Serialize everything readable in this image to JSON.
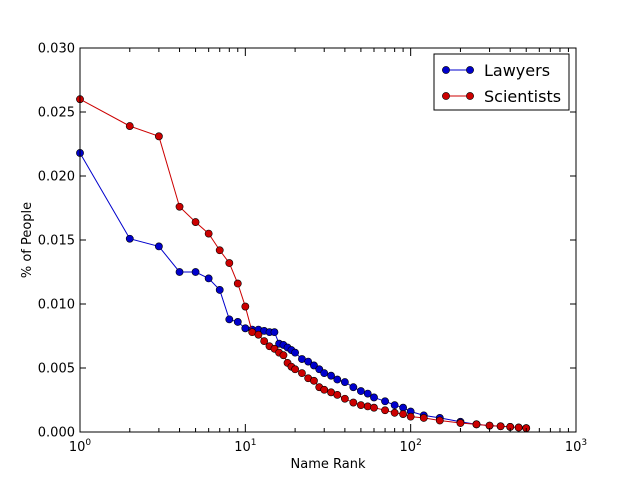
{
  "chart_data": {
    "type": "line",
    "xlabel": "Name Rank",
    "ylabel": "% of People",
    "xscale": "log",
    "xlim": [
      1,
      1000
    ],
    "ylim": [
      0.0,
      0.03
    ],
    "x_ticks": [
      {
        "value": 1,
        "base": "10",
        "exp": "0"
      },
      {
        "value": 10,
        "base": "10",
        "exp": "1"
      },
      {
        "value": 100,
        "base": "10",
        "exp": "2"
      },
      {
        "value": 1000,
        "base": "10",
        "exp": "3"
      }
    ],
    "y_ticks": [
      {
        "value": 0.0,
        "label": "0.000"
      },
      {
        "value": 0.005,
        "label": "0.005"
      },
      {
        "value": 0.01,
        "label": "0.010"
      },
      {
        "value": 0.015,
        "label": "0.015"
      },
      {
        "value": 0.02,
        "label": "0.020"
      },
      {
        "value": 0.025,
        "label": "0.025"
      },
      {
        "value": 0.03,
        "label": "0.030"
      }
    ],
    "legend_position": "top-right",
    "grid": false,
    "series": [
      {
        "name": "Lawyers",
        "color": "#0000cc",
        "x": [
          1,
          2,
          3,
          4,
          5,
          6,
          7,
          8,
          9,
          10,
          11,
          12,
          13,
          14,
          15,
          16,
          17,
          18,
          19,
          20,
          22,
          24,
          26,
          28,
          30,
          33,
          36,
          40,
          45,
          50,
          55,
          60,
          70,
          80,
          90,
          100,
          120,
          150,
          200,
          250,
          300,
          350,
          400,
          450,
          500
        ],
        "y": [
          0.0218,
          0.0151,
          0.0145,
          0.0125,
          0.0125,
          0.012,
          0.0111,
          0.0088,
          0.0086,
          0.0081,
          0.008,
          0.008,
          0.0079,
          0.0078,
          0.0078,
          0.0069,
          0.0068,
          0.0066,
          0.0064,
          0.0062,
          0.0057,
          0.0055,
          0.0052,
          0.0049,
          0.0046,
          0.0044,
          0.0041,
          0.0039,
          0.0035,
          0.0032,
          0.003,
          0.0027,
          0.0024,
          0.0021,
          0.0019,
          0.0016,
          0.0013,
          0.0011,
          0.0008,
          0.0006,
          0.0005,
          0.00045,
          0.0004,
          0.00035,
          0.0003
        ]
      },
      {
        "name": "Scientists",
        "color": "#cc0000",
        "x": [
          1,
          2,
          3,
          4,
          5,
          6,
          7,
          8,
          9,
          10,
          11,
          12,
          13,
          14,
          15,
          16,
          17,
          18,
          19,
          20,
          22,
          24,
          26,
          28,
          30,
          33,
          36,
          40,
          45,
          50,
          55,
          60,
          70,
          80,
          90,
          100,
          120,
          150,
          200,
          250,
          300,
          350,
          400,
          450,
          500
        ],
        "y": [
          0.026,
          0.0239,
          0.0231,
          0.0176,
          0.0164,
          0.0155,
          0.0142,
          0.0132,
          0.0116,
          0.0098,
          0.0078,
          0.0076,
          0.0071,
          0.0067,
          0.0065,
          0.0062,
          0.006,
          0.0054,
          0.0051,
          0.0049,
          0.0046,
          0.0042,
          0.004,
          0.0035,
          0.0033,
          0.0031,
          0.0029,
          0.0026,
          0.0023,
          0.0021,
          0.002,
          0.0019,
          0.0017,
          0.0015,
          0.0014,
          0.0012,
          0.0011,
          0.0009,
          0.0007,
          0.0006,
          0.0005,
          0.00045,
          0.0004,
          0.00035,
          0.0003
        ]
      }
    ]
  }
}
